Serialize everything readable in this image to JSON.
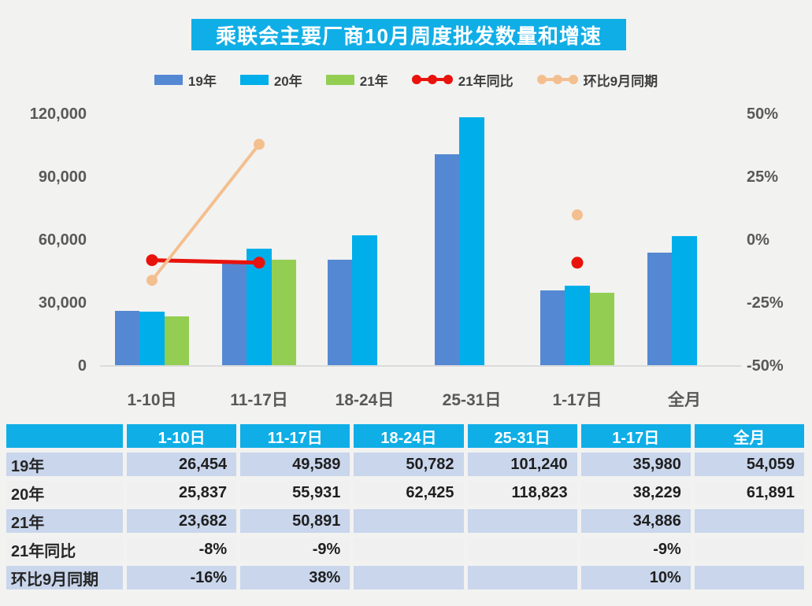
{
  "title": "乘联会主要厂商10月周度批发数量和增速",
  "colors": {
    "accent_cyan": "#10aee6",
    "bar_blue": "#5588d2",
    "bar_cyan": "#00aeea",
    "bar_green": "#93ce53",
    "line_red": "#e8130c",
    "line_peach": "#f4bf8f",
    "axis_text": "#595959",
    "row_blue": "#c9d6ec",
    "row_gray": "#f0f0f0"
  },
  "legend": [
    {
      "label": "19年",
      "marker": "swatch",
      "color": "#5588d2"
    },
    {
      "label": "20年",
      "marker": "swatch",
      "color": "#00aeea"
    },
    {
      "label": "21年",
      "marker": "swatch",
      "color": "#93ce53"
    },
    {
      "label": "21年同比",
      "marker": "line-dots",
      "color": "#e8130c"
    },
    {
      "label": "环比9月同期",
      "marker": "line-dots",
      "color": "#f4bf8f"
    }
  ],
  "chart_data": {
    "type": "bar",
    "subtype": "grouped bars with two overlay marker-lines on secondary percent axis",
    "categories": [
      "1-10日",
      "11-17日",
      "18-24日",
      "25-31日",
      "1-17日",
      "全月"
    ],
    "series": [
      {
        "name": "19年",
        "type": "bar",
        "axis": "left",
        "color": "#5588d2",
        "values": [
          26454,
          49589,
          50782,
          101240,
          35980,
          54059
        ]
      },
      {
        "name": "20年",
        "type": "bar",
        "axis": "left",
        "color": "#00aeea",
        "values": [
          25837,
          55931,
          62425,
          118823,
          38229,
          61891
        ]
      },
      {
        "name": "21年",
        "type": "bar",
        "axis": "left",
        "color": "#93ce53",
        "values": [
          23682,
          50891,
          null,
          null,
          34886,
          null
        ]
      },
      {
        "name": "21年同比",
        "type": "line",
        "axis": "right",
        "color": "#e8130c",
        "values": [
          -8,
          -9,
          null,
          null,
          -9,
          null
        ]
      },
      {
        "name": "环比9月同期",
        "type": "line",
        "axis": "right",
        "color": "#f4bf8f",
        "values": [
          -16,
          38,
          null,
          null,
          10,
          null
        ]
      }
    ],
    "title": "乘联会主要厂商10月周度批发数量和增速",
    "xlabel": "",
    "ylabel": "",
    "left_axis": {
      "min": 0,
      "max": 120000,
      "tick_labels": [
        "120,000",
        "90,000",
        "60,000",
        "30,000",
        "0"
      ]
    },
    "right_axis": {
      "min": -50,
      "max": 50,
      "unit": "%",
      "tick_labels": [
        "50%",
        "25%",
        "0%",
        "-25%",
        "-50%"
      ]
    },
    "grid": false,
    "legend_position": "top"
  },
  "table": {
    "header": [
      "",
      "1-10日",
      "11-17日",
      "18-24日",
      "25-31日",
      "1-17日",
      "全月"
    ],
    "rows": [
      {
        "label": "19年",
        "values": [
          "26,454",
          "49,589",
          "50,782",
          "101,240",
          "35,980",
          "54,059"
        ]
      },
      {
        "label": "20年",
        "values": [
          "25,837",
          "55,931",
          "62,425",
          "118,823",
          "38,229",
          "61,891"
        ]
      },
      {
        "label": "21年",
        "values": [
          "23,682",
          "50,891",
          "",
          "",
          "34,886",
          ""
        ]
      },
      {
        "label": "21年同比",
        "values": [
          "-8%",
          "-9%",
          "",
          "",
          "-9%",
          ""
        ]
      },
      {
        "label": "环比9月同期",
        "values": [
          "-16%",
          "38%",
          "",
          "",
          "10%",
          ""
        ]
      }
    ]
  }
}
